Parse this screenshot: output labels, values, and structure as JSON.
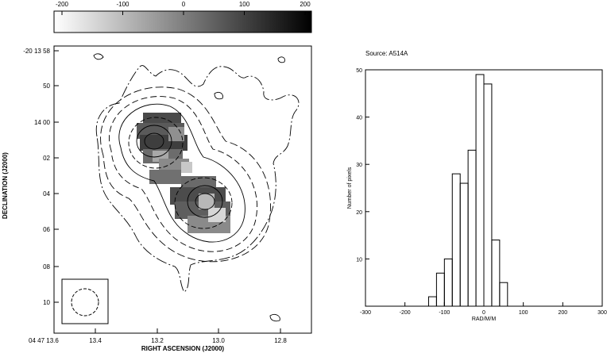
{
  "chart_data": [
    {
      "type": "heatmap",
      "colorbar": {
        "ticks": [
          "-200",
          "-100",
          "0",
          "100",
          "200"
        ],
        "range": [
          -200,
          200
        ]
      },
      "xlabel": "RIGHT ASCENSION (J2000)",
      "ylabel": "DECLINATION (J2000)",
      "x_ticks": [
        "04 47 13.6",
        "13.4",
        "13.2",
        "13.0",
        "12.8"
      ],
      "y_ticks": [
        "-20 13 58",
        "50",
        "14 00",
        "02",
        "04",
        "06",
        "08",
        "10"
      ],
      "grid": false,
      "beam_inset": "bottom-left"
    },
    {
      "type": "bar",
      "title": "Source: A514A",
      "xlabel": "RAD/M/M",
      "ylabel": "Number of pixels",
      "xlim": [
        -300,
        300
      ],
      "ylim": [
        0,
        50
      ],
      "x_ticks": [
        "-300",
        "-200",
        "-100",
        "0",
        "100",
        "200",
        "300"
      ],
      "y_ticks": [
        "10",
        "20",
        "30",
        "40",
        "50"
      ],
      "bin_width": 20,
      "bins": [
        {
          "x0": -140,
          "value": 2
        },
        {
          "x0": -120,
          "value": 7
        },
        {
          "x0": -100,
          "value": 10
        },
        {
          "x0": -80,
          "value": 28
        },
        {
          "x0": -60,
          "value": 26
        },
        {
          "x0": -40,
          "value": 33
        },
        {
          "x0": -20,
          "value": 49
        },
        {
          "x0": 0,
          "value": 47
        },
        {
          "x0": 20,
          "value": 14
        },
        {
          "x0": 40,
          "value": 5
        }
      ],
      "grid": false
    }
  ]
}
